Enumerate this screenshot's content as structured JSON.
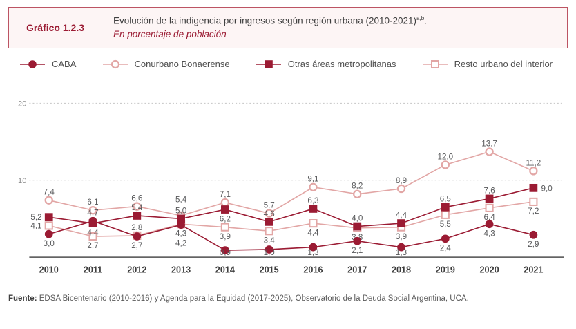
{
  "header": {
    "figure_label": "Gráfico 1.2.3",
    "title": "Evolución de la indigencia por ingresos según región urbana (2010-2021)",
    "title_superscript": "a,b",
    "title_suffix": ".",
    "subtitle": "En porcentaje de población"
  },
  "chart_data": {
    "type": "line",
    "title": "Evolución de la indigencia por ingresos según región urbana (2010-2021)",
    "ylabel": "Porcentaje de población",
    "x": [
      2010,
      2011,
      2012,
      2013,
      2014,
      2015,
      2016,
      2017,
      2018,
      2019,
      2020,
      2021
    ],
    "series": [
      {
        "name": "CABA",
        "marker": "circle",
        "variant": "solid",
        "palette": "dark",
        "values": [
          3.0,
          4.7,
          2.7,
          4.2,
          0.9,
          1.0,
          1.3,
          2.1,
          1.3,
          2.4,
          4.3,
          2.9
        ],
        "label_pos": [
          "b",
          "a",
          "b",
          "B",
          "b",
          "b",
          "b",
          "b",
          "b",
          "b",
          "b",
          "b"
        ]
      },
      {
        "name": "Conurbano Bonaerense",
        "marker": "circle",
        "variant": "open",
        "palette": "light",
        "values": [
          7.4,
          6.1,
          6.6,
          5.4,
          7.1,
          5.7,
          9.1,
          8.2,
          8.9,
          12.0,
          13.7,
          11.2
        ],
        "label_pos": [
          "a",
          "a",
          "a",
          "A",
          "a",
          "a",
          "a",
          "a",
          "a",
          "a",
          "a",
          "a"
        ]
      },
      {
        "name": "Otras áreas metropolitanas",
        "marker": "square",
        "variant": "solid",
        "palette": "dark",
        "values": [
          5.2,
          4.4,
          5.4,
          5.0,
          6.2,
          4.6,
          6.3,
          4.0,
          4.4,
          6.5,
          7.6,
          9.0
        ],
        "label_pos": [
          "l",
          "b",
          "a",
          "a",
          "b",
          "a",
          "a",
          "a",
          "a",
          "a",
          "a",
          "r"
        ]
      },
      {
        "name": "Resto urbano del interior",
        "marker": "square",
        "variant": "open",
        "palette": "light",
        "values": [
          4.1,
          2.7,
          2.8,
          4.3,
          3.9,
          3.4,
          4.4,
          3.8,
          3.9,
          5.5,
          6.4,
          7.2
        ],
        "label_pos": [
          "l",
          "b",
          "a",
          "b",
          "b",
          "b",
          "b",
          "b",
          "b",
          "b",
          "b",
          "b"
        ]
      }
    ],
    "ylim": [
      0,
      20
    ],
    "yticks": [
      20,
      10
    ],
    "grid": "dotted-horizontal",
    "legend_position": "top",
    "draw_order": [
      1,
      3,
      2,
      0
    ],
    "decimal_separator": ","
  },
  "footer": {
    "label": "Fuente:",
    "text": "EDSA Bicentenario (2010-2016) y Agenda para la Equidad (2017-2025), Observatorio de la Deuda Social Argentina, UCA."
  },
  "colors": {
    "dark_red": "#9B1B33",
    "light_rose": "#E2A6A5",
    "header_border": "#BC5463",
    "header_bg": "#FDF5F5",
    "grid_gray": "#C4C4C4",
    "axis_gray": "#4D4D4D",
    "label_gray": "#58595B"
  }
}
